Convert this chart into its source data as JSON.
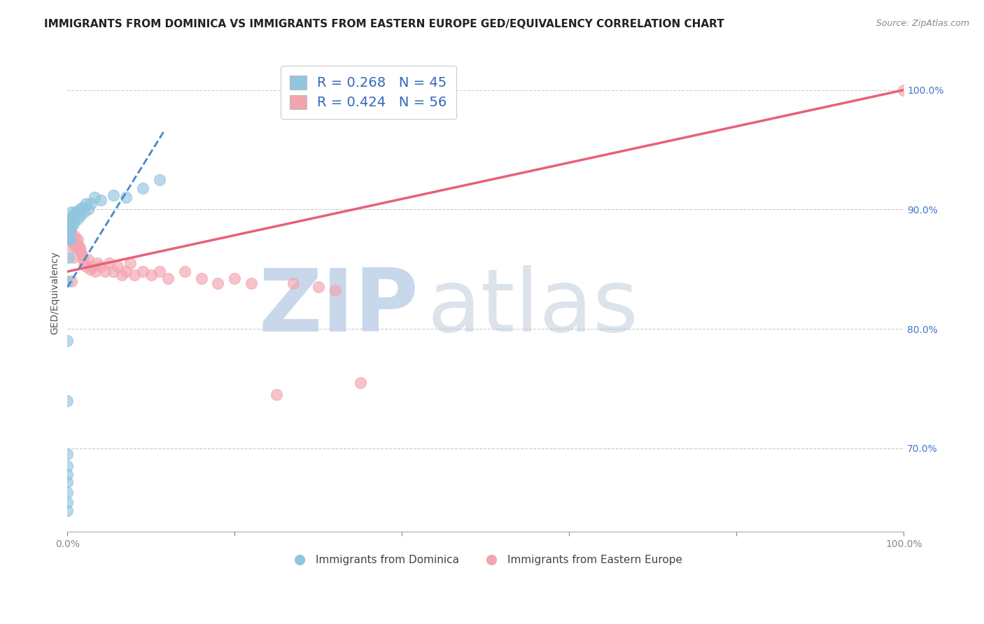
{
  "title": "IMMIGRANTS FROM DOMINICA VS IMMIGRANTS FROM EASTERN EUROPE GED/EQUIVALENCY CORRELATION CHART",
  "source_text": "Source: ZipAtlas.com",
  "ylabel": "GED/Equivalency",
  "xlim": [
    0.0,
    1.0
  ],
  "ylim": [
    0.63,
    1.03
  ],
  "x_ticks": [
    0.0,
    0.2,
    0.4,
    0.6,
    0.8,
    1.0
  ],
  "x_tick_labels": [
    "0.0%",
    "",
    "",
    "",
    "",
    "100.0%"
  ],
  "y_ticks": [
    0.7,
    0.8,
    0.9,
    1.0
  ],
  "y_tick_labels": [
    "70.0%",
    "80.0%",
    "90.0%",
    "100.0%"
  ],
  "legend_r1": "R = 0.268   N = 45",
  "legend_r2": "R = 0.424   N = 56",
  "legend_label1": "Immigrants from Dominica",
  "legend_label2": "Immigrants from Eastern Europe",
  "blue_color": "#92C5DE",
  "pink_color": "#F4A4B0",
  "blue_line_color": "#4488CC",
  "pink_line_color": "#E8607A",
  "watermark_zip": "ZIP",
  "watermark_atlas": "atlas",
  "watermark_color": "#C8D8EA",
  "blue_scatter_x": [
    0.0,
    0.0,
    0.0,
    0.0,
    0.0,
    0.0,
    0.0,
    0.0,
    0.0,
    0.0,
    0.001,
    0.001,
    0.001,
    0.002,
    0.002,
    0.002,
    0.003,
    0.003,
    0.004,
    0.004,
    0.005,
    0.005,
    0.005,
    0.006,
    0.006,
    0.007,
    0.007,
    0.008,
    0.009,
    0.01,
    0.012,
    0.013,
    0.015,
    0.016,
    0.018,
    0.02,
    0.022,
    0.025,
    0.028,
    0.032,
    0.04,
    0.055,
    0.07,
    0.09,
    0.11
  ],
  "blue_scatter_y": [
    0.648,
    0.655,
    0.663,
    0.672,
    0.678,
    0.685,
    0.695,
    0.74,
    0.79,
    0.84,
    0.86,
    0.875,
    0.885,
    0.875,
    0.882,
    0.89,
    0.875,
    0.885,
    0.888,
    0.892,
    0.885,
    0.892,
    0.898,
    0.89,
    0.895,
    0.888,
    0.895,
    0.892,
    0.895,
    0.898,
    0.892,
    0.898,
    0.9,
    0.895,
    0.902,
    0.898,
    0.905,
    0.9,
    0.905,
    0.91,
    0.908,
    0.912,
    0.91,
    0.918,
    0.925
  ],
  "pink_scatter_x": [
    0.0,
    0.0,
    0.001,
    0.002,
    0.003,
    0.004,
    0.005,
    0.006,
    0.007,
    0.008,
    0.009,
    0.01,
    0.011,
    0.012,
    0.013,
    0.015,
    0.016,
    0.017,
    0.018,
    0.02,
    0.022,
    0.025,
    0.027,
    0.03,
    0.033,
    0.036,
    0.04,
    0.045,
    0.05,
    0.055,
    0.06,
    0.065,
    0.07,
    0.075,
    0.08,
    0.09,
    0.1,
    0.11,
    0.12,
    0.14,
    0.16,
    0.18,
    0.2,
    0.22,
    0.25,
    0.27,
    0.3,
    0.32,
    0.35,
    1.0,
    0.0,
    0.002,
    0.003,
    0.005,
    0.007,
    0.01
  ],
  "pink_scatter_y": [
    0.875,
    0.882,
    0.882,
    0.878,
    0.885,
    0.88,
    0.878,
    0.875,
    0.872,
    0.878,
    0.87,
    0.875,
    0.868,
    0.875,
    0.87,
    0.868,
    0.865,
    0.862,
    0.86,
    0.855,
    0.852,
    0.858,
    0.85,
    0.852,
    0.848,
    0.855,
    0.852,
    0.848,
    0.855,
    0.848,
    0.852,
    0.845,
    0.848,
    0.855,
    0.845,
    0.848,
    0.845,
    0.848,
    0.842,
    0.848,
    0.842,
    0.838,
    0.842,
    0.838,
    0.745,
    0.838,
    0.835,
    0.832,
    0.755,
    1.0,
    0.88,
    0.89,
    0.87,
    0.84,
    0.86,
    0.87
  ],
  "blue_trend_x": [
    0.0,
    0.115
  ],
  "blue_trend_y": [
    0.835,
    0.965
  ],
  "pink_trend_x": [
    0.0,
    1.0
  ],
  "pink_trend_y": [
    0.848,
    1.0
  ],
  "title_fontsize": 11,
  "axis_label_fontsize": 10,
  "tick_fontsize": 10
}
